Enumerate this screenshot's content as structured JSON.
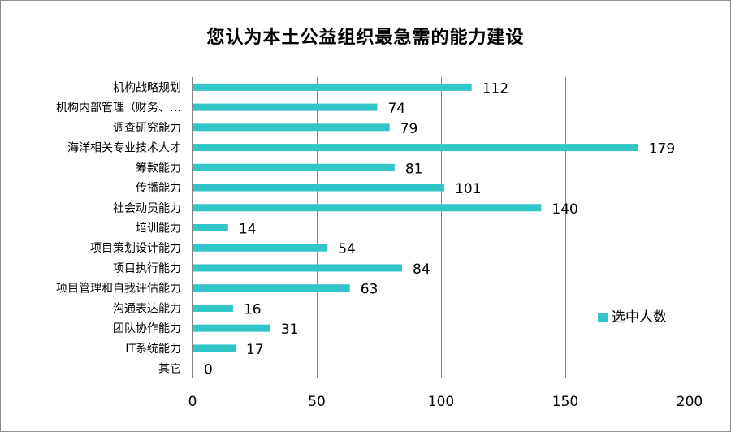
{
  "chart_data": {
    "type": "bar",
    "orientation": "horizontal",
    "title": "您认为本土公益组织最急需的能力建设",
    "categories": [
      "机构战略规划",
      "机构内部管理（财务、…",
      "调查研究能力",
      "海洋相关专业技术人才",
      "筹款能力",
      "传播能力",
      "社会动员能力",
      "培训能力",
      "项目策划设计能力",
      "项目执行能力",
      "项目管理和自我评估能力",
      "沟通表达能力",
      "团队协作能力",
      "IT系统能力",
      "其它"
    ],
    "series": [
      {
        "name": "选中人数",
        "values": [
          112,
          74,
          79,
          179,
          81,
          101,
          140,
          14,
          54,
          84,
          63,
          16,
          31,
          17,
          0
        ],
        "color": "#33c6c9"
      }
    ],
    "xlim": [
      0,
      200
    ],
    "xticks": [
      0,
      50,
      100,
      150,
      200
    ],
    "grid": "vertical",
    "legend_position": "right",
    "data_labels": true,
    "colors": {
      "bar": "#33c6c9",
      "gridline": "#868686",
      "border": "#8c8c8c"
    }
  }
}
